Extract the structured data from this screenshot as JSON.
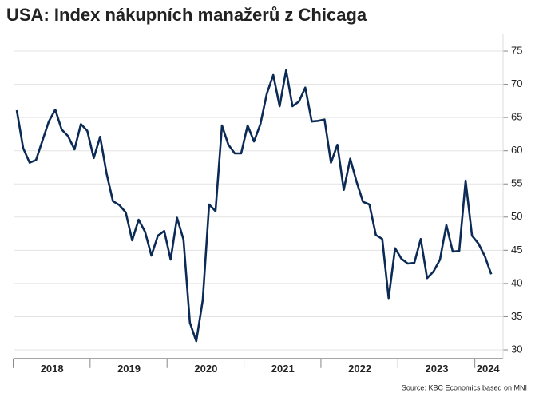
{
  "chart_data": {
    "type": "line",
    "title": "USA: Index nákupních manažerů z Chicaga",
    "source": "Source: KBC Economics based on MNI",
    "categories": [
      null,
      null,
      null,
      null,
      null,
      null,
      "2018",
      null,
      null,
      null,
      null,
      null,
      null,
      null,
      null,
      null,
      null,
      null,
      "2019",
      null,
      null,
      null,
      null,
      null,
      null,
      null,
      null,
      null,
      null,
      null,
      "2020",
      null,
      null,
      null,
      null,
      null,
      null,
      null,
      null,
      null,
      null,
      null,
      "2021",
      null,
      null,
      null,
      null,
      null,
      null,
      null,
      null,
      null,
      null,
      null,
      "2022",
      null,
      null,
      null,
      null,
      null,
      null,
      null,
      null,
      null,
      null,
      null,
      "2023",
      null,
      null,
      null,
      null,
      null,
      null,
      null,
      "2024"
    ],
    "series": [
      {
        "color": "#0b2a55",
        "values": [
          66.1,
          60.4,
          58.2,
          58.6,
          61.5,
          64.4,
          66.2,
          63.2,
          62.2,
          60.2,
          64.0,
          63.0,
          58.9,
          62.1,
          56.6,
          52.4,
          51.8,
          50.7,
          46.5,
          49.6,
          47.8,
          44.2,
          47.2,
          47.9,
          43.6,
          49.9,
          46.6,
          34.1,
          31.3,
          37.5,
          51.9,
          50.9,
          63.8,
          60.9,
          59.6,
          59.6,
          63.8,
          61.4,
          64.0,
          68.6,
          71.4,
          66.7,
          72.1,
          66.7,
          67.4,
          69.5,
          64.4,
          64.5,
          64.7,
          58.2,
          60.9,
          54.1,
          58.8,
          55.3,
          52.3,
          51.9,
          47.3,
          46.7,
          37.8,
          45.3,
          43.7,
          43.0,
          43.1,
          46.7,
          40.8,
          41.8,
          43.6,
          48.8,
          44.8,
          44.9,
          55.5,
          47.2,
          46.0,
          44.1,
          41.4
        ]
      }
    ],
    "ylim": [
      28.7,
      76.4
    ],
    "yticks": [
      30,
      35,
      40,
      45,
      50,
      55,
      60,
      65,
      70,
      75
    ],
    "grid": true
  }
}
